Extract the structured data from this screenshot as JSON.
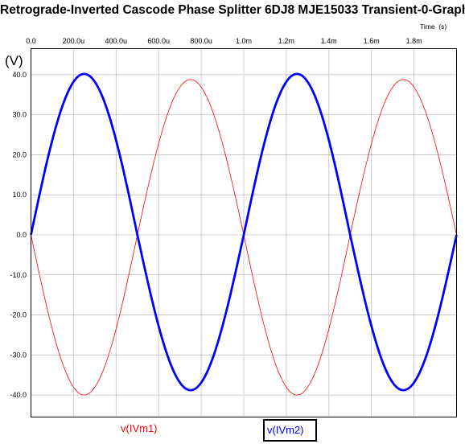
{
  "title": "Retrograde-Inverted Cascode Phase Splitter 6DJ8 MJE15033 Transient-0-Graph",
  "chart_data": {
    "type": "line",
    "title": "Retrograde-Inverted Cascode Phase Splitter 6DJ8 MJE15033 Transient-0-Graph",
    "xlabel": "Time  (s)",
    "ylabel": "(V)",
    "xlim": [
      0,
      0.002
    ],
    "ylim": [
      -45.5,
      46.5
    ],
    "x_ticks": [
      0,
      0.0002,
      0.0004,
      0.0006,
      0.0008,
      0.001,
      0.0012,
      0.0014,
      0.0016,
      0.0018
    ],
    "x_tick_labels": [
      "0.0",
      "200.0u",
      "400.0u",
      "600.0u",
      "800.0u",
      "1.0m",
      "1.2m",
      "1.4m",
      "1.6m",
      "1.8m"
    ],
    "y_ticks": [
      40,
      30,
      20,
      10,
      0,
      -10,
      -20,
      -30,
      -40
    ],
    "y_tick_labels": [
      "40.0",
      "30.0",
      "20.0",
      "10.0",
      "0.0",
      "-10.0",
      "-20.0",
      "-30.0",
      "-40.0"
    ],
    "grid": true,
    "legend_position": "bottom",
    "series": [
      {
        "name": "v(IVm1)",
        "color": "#ff0000",
        "line_width": 0.8,
        "x": [
          0,
          0.00025,
          0.0005,
          0.00075,
          0.001,
          0.00125,
          0.0015,
          0.00175,
          0.002
        ],
        "values": [
          0,
          -40,
          0,
          38.8,
          0,
          -40,
          0,
          38.8,
          0
        ]
      },
      {
        "name": "v(IVm2)",
        "color": "#0000ff",
        "line_width": 2.8,
        "x": [
          0,
          0.00025,
          0.0005,
          0.00075,
          0.001,
          0.00125,
          0.0015,
          0.00175,
          0.002
        ],
        "values": [
          0,
          40.2,
          0,
          -38.8,
          0,
          40.2,
          0,
          -38.8,
          0
        ]
      }
    ]
  }
}
